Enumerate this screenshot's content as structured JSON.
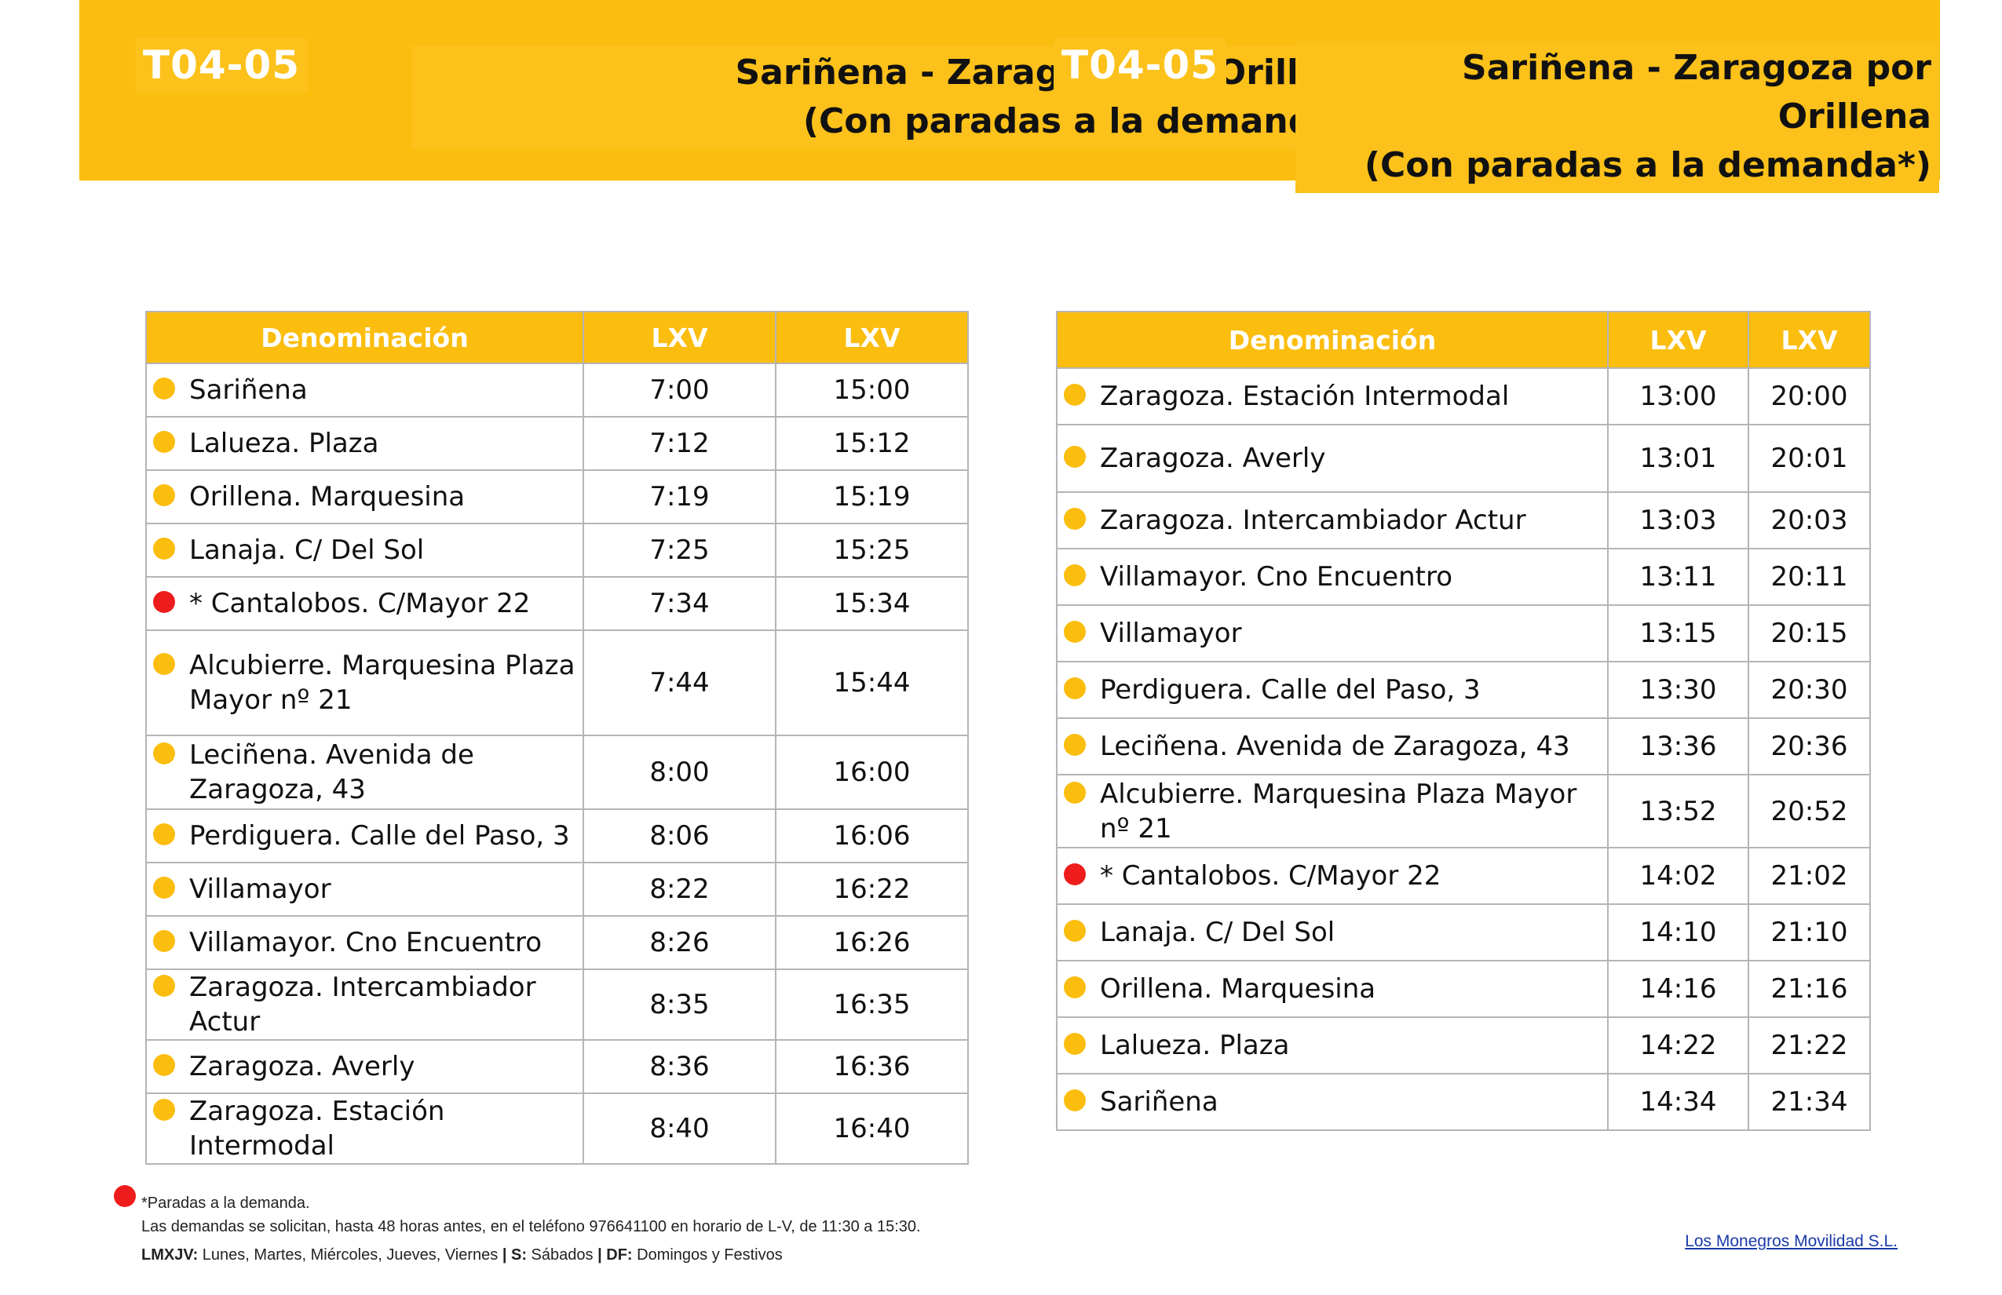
{
  "header": {
    "code_left": "T04-05",
    "route_left_line1": "Sariñena - Zaragoza por Orillena",
    "route_left_line2": "(Con paradas a la demanda*)",
    "code_right": "T04-05",
    "route_right_line1": "Sariñena - Zaragoza por Orillena",
    "route_right_line2": "(Con paradas a la demanda*)"
  },
  "colors": {
    "brand_yellow": "#fbbd0e",
    "on_demand_red": "#ee1c1c",
    "grid_gray": "#b5b5b5",
    "link_blue": "#1a3aa8"
  },
  "outbound": {
    "headers": [
      "Denominación",
      "LXV",
      "LXV"
    ],
    "rows": [
      {
        "stop": "Sariñena",
        "t1": "7:00",
        "t2": "15:00",
        "on_demand": false
      },
      {
        "stop": "Lalueza. Plaza",
        "t1": "7:12",
        "t2": "15:12",
        "on_demand": false
      },
      {
        "stop": "Orillena. Marquesina",
        "t1": "7:19",
        "t2": "15:19",
        "on_demand": false
      },
      {
        "stop": "Lanaja. C/ Del Sol",
        "t1": "7:25",
        "t2": "15:25",
        "on_demand": false
      },
      {
        "stop": "* Cantalobos. C/Mayor 22",
        "t1": "7:34",
        "t2": "15:34",
        "on_demand": true
      },
      {
        "stop": "Alcubierre.  Marquesina Plaza Mayor nº 21",
        "t1": "7:44",
        "t2": "15:44",
        "on_demand": false
      },
      {
        "stop": "Leciñena. Avenida de Zaragoza, 43",
        "t1": "8:00",
        "t2": "16:00",
        "on_demand": false
      },
      {
        "stop": "Perdiguera. Calle del Paso, 3",
        "t1": "8:06",
        "t2": "16:06",
        "on_demand": false
      },
      {
        "stop": "Villamayor",
        "t1": "8:22",
        "t2": "16:22",
        "on_demand": false
      },
      {
        "stop": "Villamayor. Cno Encuentro",
        "t1": "8:26",
        "t2": "16:26",
        "on_demand": false
      },
      {
        "stop": "Zaragoza. Intercambiador Actur",
        "t1": "8:35",
        "t2": "16:35",
        "on_demand": false
      },
      {
        "stop": "Zaragoza. Averly",
        "t1": "8:36",
        "t2": "16:36",
        "on_demand": false
      },
      {
        "stop": "Zaragoza.  Estación Intermodal",
        "t1": "8:40",
        "t2": "16:40",
        "on_demand": false
      }
    ]
  },
  "inbound": {
    "headers": [
      "Denominación",
      "LXV",
      "LXV"
    ],
    "rows": [
      {
        "stop": "Zaragoza.  Estación Intermodal",
        "t1": "13:00",
        "t2": "20:00",
        "on_demand": false
      },
      {
        "stop": "Zaragoza. Averly",
        "t1": "13:01",
        "t2": "20:01",
        "on_demand": false
      },
      {
        "stop": "Zaragoza. Intercambiador Actur",
        "t1": "13:03",
        "t2": "20:03",
        "on_demand": false
      },
      {
        "stop": "Villamayor. Cno Encuentro",
        "t1": "13:11",
        "t2": "20:11",
        "on_demand": false
      },
      {
        "stop": "Villamayor",
        "t1": "13:15",
        "t2": "20:15",
        "on_demand": false
      },
      {
        "stop": "Perdiguera. Calle del Paso, 3",
        "t1": "13:30",
        "t2": "20:30",
        "on_demand": false
      },
      {
        "stop": "Leciñena. Avenida de Zaragoza, 43",
        "t1": "13:36",
        "t2": "20:36",
        "on_demand": false
      },
      {
        "stop": "Alcubierre.  Marquesina Plaza Mayor nº 21",
        "t1": "13:52",
        "t2": "20:52",
        "on_demand": false
      },
      {
        "stop": "* Cantalobos. C/Mayor 22",
        "t1": "14:02",
        "t2": "21:02",
        "on_demand": true
      },
      {
        "stop": "Lanaja. C/ Del Sol",
        "t1": "14:10",
        "t2": "21:10",
        "on_demand": false
      },
      {
        "stop": "Orillena. Marquesina",
        "t1": "14:16",
        "t2": "21:16",
        "on_demand": false
      },
      {
        "stop": "Lalueza. Plaza",
        "t1": "14:22",
        "t2": "21:22",
        "on_demand": false
      },
      {
        "stop": "Sariñena",
        "t1": "14:34",
        "t2": "21:34",
        "on_demand": false
      }
    ]
  },
  "footer": {
    "on_demand_note": "*Paradas a la demanda.",
    "request_note": "Las demandas se solicitan, hasta 48 horas antes, en el teléfono 976641100 en horario de L-V, de 11:30 a 15:30.",
    "legend_lmxjv_key": "LMXJV:",
    "legend_lmxjv_value": " Lunes, Martes, Miércoles, Jueves, Viernes ",
    "legend_sep1": "|",
    "legend_s_key": " S:",
    "legend_s_value": " Sábados ",
    "legend_sep2": "|",
    "legend_df_key": " DF:",
    "legend_df_value": " Domingos y Festivos",
    "company_link": "Los Monegros Movilidad S.L."
  }
}
